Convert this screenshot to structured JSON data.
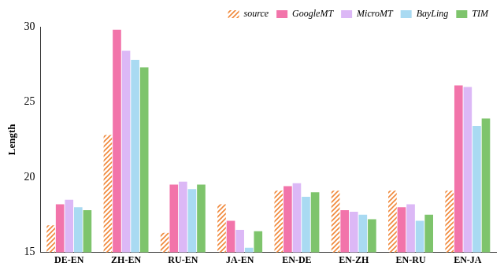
{
  "chart_data": {
    "type": "bar",
    "y_label": "Length",
    "categories": [
      "DE-EN",
      "ZH-EN",
      "RU-EN",
      "JA-EN",
      "EN-DE",
      "EN-ZH",
      "EN-RU",
      "EN-JA"
    ],
    "series": [
      {
        "name": "source",
        "color": "#f0883a",
        "values": [
          16.8,
          22.8,
          16.3,
          18.2,
          19.1,
          19.1,
          19.1,
          19.1
        ]
      },
      {
        "name": "GoogleMT",
        "color": "#f274aa",
        "values": [
          18.2,
          29.8,
          19.5,
          17.1,
          19.4,
          17.8,
          18.0,
          26.1
        ]
      },
      {
        "name": "MicroMT",
        "color": "#dcb8f6",
        "values": [
          18.5,
          28.4,
          19.7,
          16.5,
          19.6,
          17.7,
          18.2,
          26.0
        ]
      },
      {
        "name": "BayLing",
        "color": "#a9daf2",
        "values": [
          18.0,
          27.8,
          19.2,
          15.3,
          18.7,
          17.5,
          17.1,
          23.4
        ]
      },
      {
        "name": "TIM",
        "color": "#7ec46c",
        "values": [
          17.8,
          27.3,
          19.5,
          16.4,
          19.0,
          17.2,
          17.5,
          23.9
        ]
      }
    ],
    "ylim": [
      15,
      30
    ],
    "yticks": [
      15,
      20,
      25,
      30
    ],
    "grid": false,
    "legend": "upper right"
  }
}
